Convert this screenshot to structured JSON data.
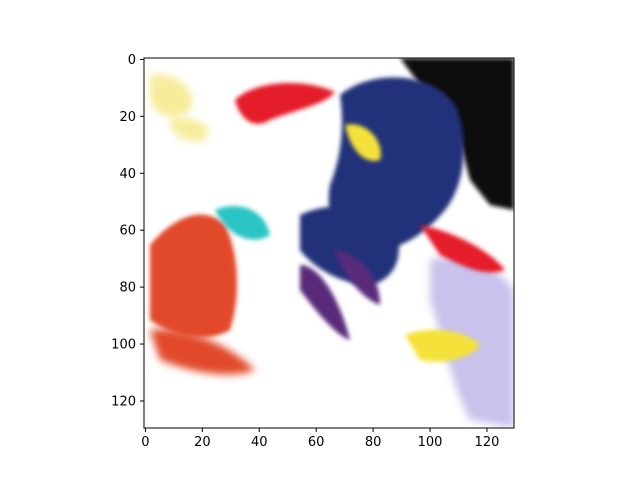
{
  "chart_data": {
    "type": "heatmap",
    "title": "",
    "xlabel": "",
    "ylabel": "",
    "xlim": [
      -0.5,
      129.5
    ],
    "ylim": [
      129.5,
      -0.5
    ],
    "x_ticks": [
      0,
      20,
      40,
      60,
      80,
      100,
      120
    ],
    "y_ticks": [
      0,
      20,
      40,
      60,
      80,
      100,
      120
    ],
    "grid": false,
    "image_size": [
      130,
      130
    ],
    "blobs": [
      {
        "name": "white-base",
        "color": "#ffffff"
      },
      {
        "name": "black-top-right",
        "color": "#0a0a0a"
      },
      {
        "name": "dark-blue-figure",
        "color": "#23307a"
      },
      {
        "name": "red-hair",
        "color": "#e51c2a"
      },
      {
        "name": "yellow-patch",
        "color": "#f4e23a"
      },
      {
        "name": "orange-red-left",
        "color": "#e24a2a"
      },
      {
        "name": "purple-strands",
        "color": "#5a2a7a"
      },
      {
        "name": "lavender-right",
        "color": "#c8c2ec"
      },
      {
        "name": "teal-accents",
        "color": "#2bc4c4"
      },
      {
        "name": "pale-yellow-left",
        "color": "#f6ec9a"
      }
    ]
  }
}
